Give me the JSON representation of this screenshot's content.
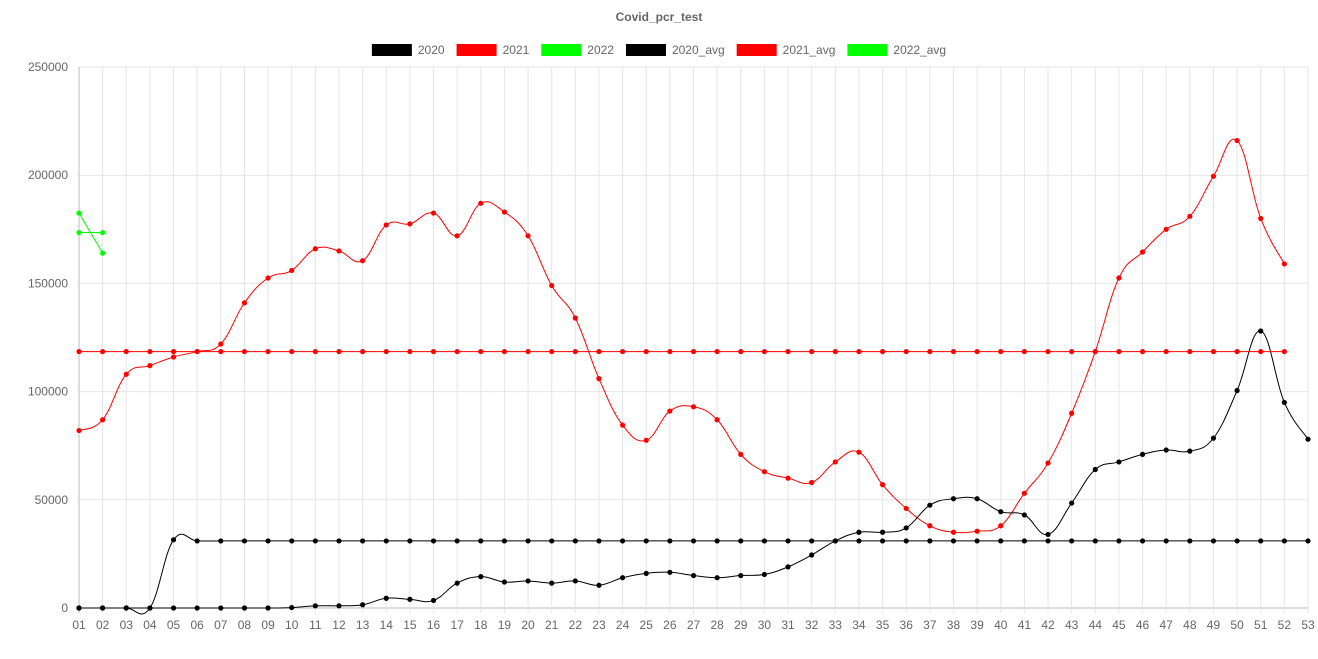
{
  "chart_data": {
    "type": "line",
    "title": "Covid_pcr_test",
    "xlabel": "",
    "ylabel": "",
    "ylim": [
      0,
      250000
    ],
    "y_ticks": [
      0,
      50000,
      100000,
      150000,
      200000,
      250000
    ],
    "y_tick_labels": [
      "0",
      "50000",
      "100000",
      "150000",
      "200000",
      "250000"
    ],
    "grid": true,
    "legend_position": "top",
    "categories": [
      "01",
      "02",
      "03",
      "04",
      "05",
      "06",
      "07",
      "08",
      "09",
      "10",
      "11",
      "12",
      "13",
      "14",
      "15",
      "16",
      "17",
      "18",
      "19",
      "20",
      "21",
      "22",
      "23",
      "24",
      "25",
      "26",
      "27",
      "28",
      "29",
      "30",
      "31",
      "32",
      "33",
      "34",
      "35",
      "36",
      "37",
      "38",
      "39",
      "40",
      "41",
      "42",
      "43",
      "44",
      "45",
      "46",
      "47",
      "48",
      "49",
      "50",
      "51",
      "52",
      "53"
    ],
    "series": [
      {
        "name": "2020",
        "color": "#000000",
        "smooth": true,
        "values": [
          0,
          0,
          0,
          0,
          31500,
          31000,
          31000,
          31000,
          31000,
          31000,
          31000,
          31000,
          31000,
          31000,
          31000,
          31000,
          31000,
          31000,
          31000,
          31000,
          31000,
          31000,
          31000,
          31000,
          31000,
          31000,
          31000,
          31000,
          31000,
          31000,
          31000,
          31000,
          31000,
          31000,
          31000,
          31000,
          31000,
          31000,
          31000,
          31000,
          31000,
          31000,
          31000,
          31000,
          31000,
          31000,
          31000,
          31000,
          31000,
          31000,
          31000,
          31000,
          31000
        ]
      },
      {
        "name": "2021",
        "color": "#ff0000",
        "smooth": true,
        "values": [
          82000,
          87000,
          108000,
          112000,
          116000,
          118500,
          122000,
          141000,
          152500,
          156000,
          166000,
          165000,
          160500,
          177000,
          177500,
          182500,
          172000,
          187000,
          183000,
          172000,
          149000,
          134000,
          106000,
          84500,
          77500,
          91000,
          93000,
          87000,
          71000,
          63000,
          60000,
          58000,
          67500,
          72000,
          57000,
          46000,
          38000,
          35000,
          35500,
          38000,
          53000,
          67000,
          90000,
          118500,
          152500,
          164500,
          175000,
          181000,
          199500,
          216000,
          180000,
          159000,
          null
        ]
      },
      {
        "name": "2022",
        "color": "#00ff00",
        "smooth": false,
        "values": [
          182500,
          164000,
          null,
          null,
          null,
          null,
          null,
          null,
          null,
          null,
          null,
          null,
          null,
          null,
          null,
          null,
          null,
          null,
          null,
          null,
          null,
          null,
          null,
          null,
          null,
          null,
          null,
          null,
          null,
          null,
          null,
          null,
          null,
          null,
          null,
          null,
          null,
          null,
          null,
          null,
          null,
          null,
          null,
          null,
          null,
          null,
          null,
          null,
          null,
          null,
          null,
          null,
          null
        ]
      },
      {
        "name": "2020_avg",
        "color": "#000000",
        "smooth": true,
        "values": [
          0,
          0,
          0,
          0,
          0,
          0,
          0,
          0,
          0,
          200,
          1000,
          1000,
          1500,
          4500,
          4000,
          3500,
          11500,
          14500,
          12000,
          12500,
          11500,
          12500,
          10500,
          14000,
          16000,
          16500,
          15000,
          14000,
          15000,
          15500,
          19000,
          24500,
          31000,
          35000,
          35000,
          37000,
          47500,
          50500,
          50500,
          44500,
          43000,
          34000,
          48500,
          64000,
          67500,
          71000,
          73000,
          72500,
          78500,
          100500,
          128000,
          95000,
          78000
        ]
      },
      {
        "name": "2021_avg",
        "color": "#ff0000",
        "smooth": false,
        "values": [
          118500,
          118500,
          118500,
          118500,
          118500,
          118500,
          118500,
          118500,
          118500,
          118500,
          118500,
          118500,
          118500,
          118500,
          118500,
          118500,
          118500,
          118500,
          118500,
          118500,
          118500,
          118500,
          118500,
          118500,
          118500,
          118500,
          118500,
          118500,
          118500,
          118500,
          118500,
          118500,
          118500,
          118500,
          118500,
          118500,
          118500,
          118500,
          118500,
          118500,
          118500,
          118500,
          118500,
          118500,
          118500,
          118500,
          118500,
          118500,
          118500,
          118500,
          118500,
          118500,
          null
        ]
      },
      {
        "name": "2022_avg",
        "color": "#00ff00",
        "smooth": false,
        "values": [
          173500,
          173500,
          null,
          null,
          null,
          null,
          null,
          null,
          null,
          null,
          null,
          null,
          null,
          null,
          null,
          null,
          null,
          null,
          null,
          null,
          null,
          null,
          null,
          null,
          null,
          null,
          null,
          null,
          null,
          null,
          null,
          null,
          null,
          null,
          null,
          null,
          null,
          null,
          null,
          null,
          null,
          null,
          null,
          null,
          null,
          null,
          null,
          null,
          null,
          null,
          null,
          null,
          null
        ]
      }
    ]
  }
}
